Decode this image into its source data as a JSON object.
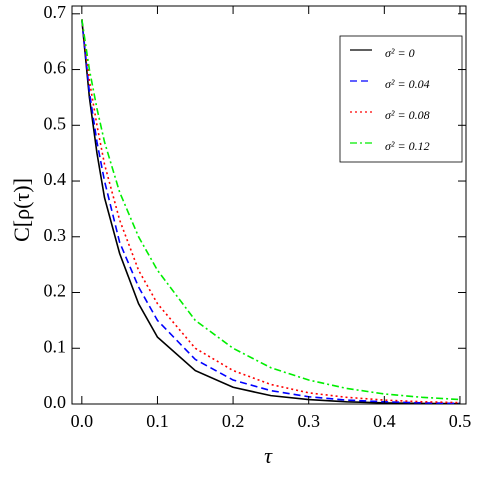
{
  "chart_data": {
    "type": "line",
    "xlabel": "τ",
    "ylabel": "C[ρ(τ)]",
    "x": [
      0,
      0.01,
      0.02,
      0.03,
      0.05,
      0.075,
      0.1,
      0.15,
      0.2,
      0.25,
      0.3,
      0.35,
      0.4,
      0.45,
      0.5
    ],
    "series": [
      {
        "name": "σ² = 0",
        "color": "#000000",
        "linestyle": "solid",
        "values": [
          0.69,
          0.55,
          0.45,
          0.37,
          0.27,
          0.18,
          0.12,
          0.06,
          0.03,
          0.015,
          0.008,
          0.004,
          0.002,
          0.001,
          0.0005
        ]
      },
      {
        "name": "σ² = 0.04",
        "color": "#0000ff",
        "linestyle": "dashed",
        "values": [
          0.69,
          0.56,
          0.47,
          0.4,
          0.29,
          0.21,
          0.15,
          0.08,
          0.043,
          0.024,
          0.013,
          0.007,
          0.004,
          0.002,
          0.001
        ]
      },
      {
        "name": "σ² = 0.08",
        "color": "#ff0000",
        "linestyle": "dotted",
        "values": [
          0.69,
          0.58,
          0.5,
          0.43,
          0.33,
          0.24,
          0.18,
          0.1,
          0.06,
          0.035,
          0.02,
          0.012,
          0.007,
          0.004,
          0.0025
        ]
      },
      {
        "name": "σ² = 0.12",
        "color": "#00ee00",
        "linestyle": "dashdot",
        "values": [
          0.69,
          0.6,
          0.53,
          0.47,
          0.38,
          0.3,
          0.24,
          0.15,
          0.1,
          0.065,
          0.043,
          0.028,
          0.018,
          0.012,
          0.008
        ]
      }
    ],
    "xlim": [
      -0.013,
      0.508
    ],
    "ylim": [
      0,
      0.714
    ],
    "xticks": [
      {
        "value": 0,
        "label": "0.0"
      },
      0.1,
      0.2,
      0.3,
      0.4,
      0.5
    ],
    "yticks": [
      {
        "value": 0,
        "label": "0.0"
      },
      0.1,
      0.2,
      0.3,
      0.4,
      0.5,
      0.6,
      0.7
    ],
    "legend": "upper right"
  }
}
